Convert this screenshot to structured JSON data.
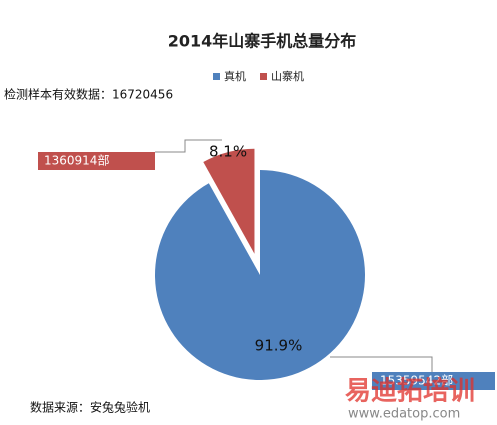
{
  "chart_data": {
    "type": "pie",
    "title": "2014年山寨手机总量分布",
    "categories": [
      "真机",
      "山寨机"
    ],
    "values": [
      91.9,
      8.1
    ],
    "value_labels": [
      "91.9%",
      "8.1%"
    ],
    "colors": [
      "#4f81bd",
      "#c0504d"
    ],
    "callout_labels": [
      "15359542部",
      "1360914部"
    ],
    "note": "检测样本有效数据：16720456",
    "source": "数据来源：安兔兔验机",
    "watermark": {
      "title": "易迪拓培训",
      "url": "www.edatop.com"
    }
  }
}
